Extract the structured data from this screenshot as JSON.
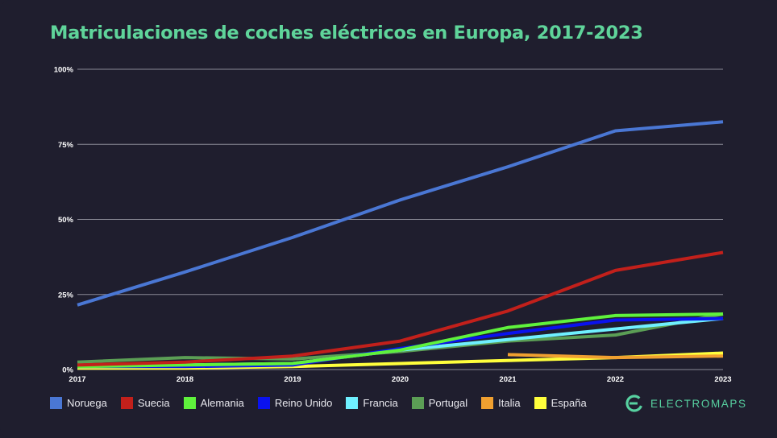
{
  "colors": {
    "background": "#1f1e2e",
    "title": "#5fd49a",
    "grid": "#8a8a96",
    "axis_text": "#ffffff",
    "brand": "#57d1a0"
  },
  "brand": {
    "name": "ELECTROMAPS",
    "icon": "electromaps-logo-icon"
  },
  "chart_data": {
    "type": "line",
    "title": "Matriculaciones de coches eléctricos en Europa, 2017-2023",
    "xlabel": "",
    "ylabel": "",
    "categories": [
      "2017",
      "2018",
      "2019",
      "2020",
      "2021",
      "2022",
      "2023"
    ],
    "y_ticks": [
      "0%",
      "25%",
      "50%",
      "75%",
      "100%"
    ],
    "ylim": [
      0,
      100
    ],
    "grid": true,
    "legend_position": "bottom-left",
    "series": [
      {
        "name": "Noruega",
        "color": "#4a77d4",
        "x": [
          "2017",
          "2018",
          "2019",
          "2020",
          "2021",
          "2022",
          "2023"
        ],
        "values": [
          21.5,
          32.5,
          44,
          56.5,
          67.5,
          79.5,
          82.5
        ]
      },
      {
        "name": "Suecia",
        "color": "#c2201b",
        "x": [
          "2017",
          "2018",
          "2019",
          "2020",
          "2021",
          "2022",
          "2023"
        ],
        "values": [
          1.5,
          2.5,
          4.5,
          9.5,
          19.5,
          33,
          39
        ]
      },
      {
        "name": "Alemania",
        "color": "#5ff23c",
        "x": [
          "2017",
          "2018",
          "2019",
          "2020",
          "2021",
          "2022",
          "2023"
        ],
        "values": [
          1,
          1.5,
          2,
          6.5,
          14,
          18,
          18.5
        ]
      },
      {
        "name": "Reino Unido",
        "color": "#0a12ee",
        "x": [
          "2017",
          "2018",
          "2019",
          "2020",
          "2021",
          "2022",
          "2023"
        ],
        "values": [
          1,
          1,
          1.5,
          7,
          12,
          16.5,
          17
        ]
      },
      {
        "name": "Francia",
        "color": "#6ff0ff",
        "x": [
          "2017",
          "2018",
          "2019",
          "2020",
          "2021",
          "2022",
          "2023"
        ],
        "values": [
          1,
          1.5,
          2,
          6.5,
          10,
          13.5,
          17
        ]
      },
      {
        "name": "Portugal",
        "color": "#5b9e55",
        "x": [
          "2017",
          "2018",
          "2019",
          "2020",
          "2021",
          "2022",
          "2023"
        ],
        "values": [
          2.5,
          4,
          3.5,
          6,
          9.5,
          11.5,
          18.5
        ]
      },
      {
        "name": "Italia",
        "color": "#f0a030",
        "x": [
          "2021",
          "2022",
          "2023"
        ],
        "values": [
          5,
          4,
          4.5
        ]
      },
      {
        "name": "España",
        "color": "#ffff3c",
        "x": [
          "2017",
          "2018",
          "2019",
          "2020",
          "2021",
          "2022",
          "2023"
        ],
        "values": [
          0.5,
          0.5,
          1,
          2,
          3,
          4,
          5.5
        ]
      }
    ]
  }
}
